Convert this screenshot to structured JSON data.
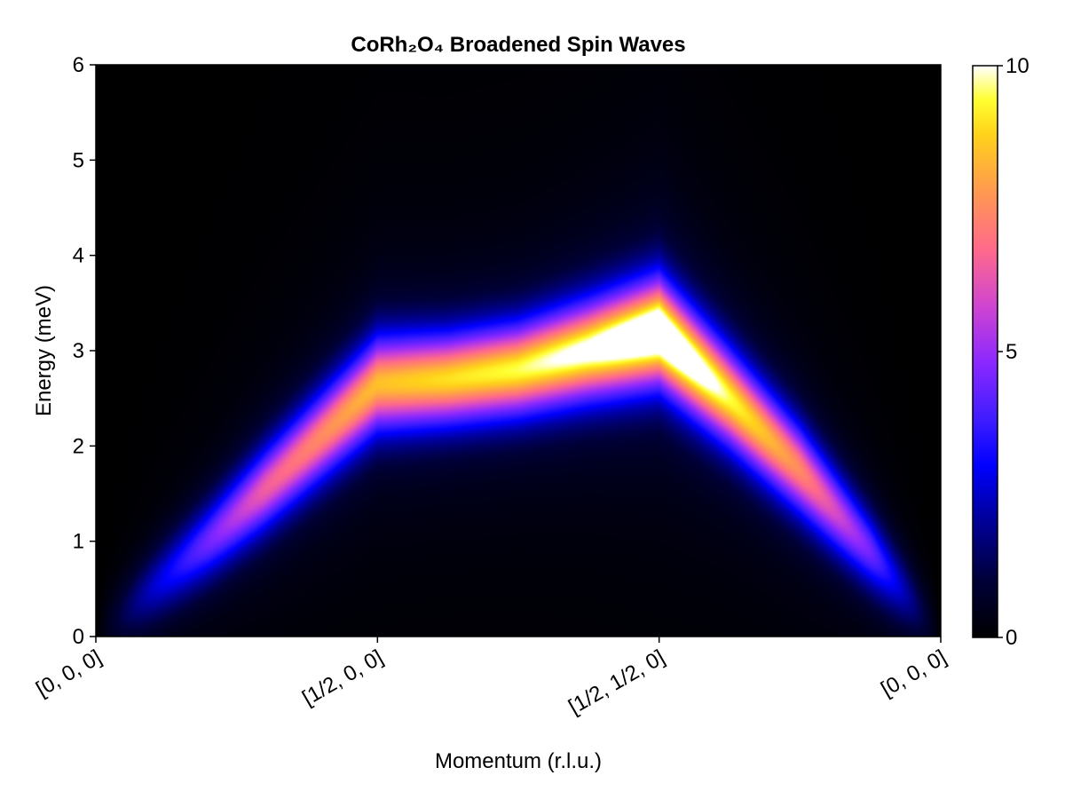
{
  "chart_data": {
    "type": "heatmap",
    "title": "CoRh₂O₄ Broadened Spin Waves",
    "xlabel": "Momentum (r.l.u.)",
    "ylabel": "Energy (meV)",
    "xlim": [
      0,
      3
    ],
    "ylim": [
      0,
      6
    ],
    "x_ticks": [
      {
        "value": 0,
        "label": "[0, 0, 0]"
      },
      {
        "value": 1,
        "label": "[1/2, 0, 0]"
      },
      {
        "value": 2,
        "label": "[1/2, 1/2, 0]"
      },
      {
        "value": 3,
        "label": "[0, 0, 0]"
      }
    ],
    "y_ticks": [
      {
        "value": 0,
        "label": "0"
      },
      {
        "value": 1,
        "label": "1"
      },
      {
        "value": 2,
        "label": "2"
      },
      {
        "value": 3,
        "label": "3"
      },
      {
        "value": 4,
        "label": "4"
      },
      {
        "value": 5,
        "label": "5"
      },
      {
        "value": 6,
        "label": "6"
      }
    ],
    "colorbar": {
      "colormap": "gnuplot2",
      "range": [
        0,
        10
      ],
      "ticks": [
        {
          "value": 0,
          "label": "0"
        },
        {
          "value": 5,
          "label": "5"
        },
        {
          "value": 10,
          "label": "10"
        }
      ],
      "placement": "right"
    },
    "dispersion": {
      "momentum": [
        0,
        0.2,
        0.4,
        0.6,
        0.8,
        1.0,
        1.25,
        1.5,
        1.75,
        2.0,
        2.25,
        2.5,
        2.75,
        3.0
      ],
      "energy": [
        0,
        0.5,
        1.0,
        1.55,
        2.1,
        2.65,
        2.7,
        2.8,
        3.0,
        3.2,
        2.5,
        1.75,
        0.9,
        0
      ],
      "peak_intensity": [
        0,
        2.5,
        4.5,
        6.5,
        7.5,
        8.5,
        9.0,
        9.5,
        10.5,
        12.5,
        9.5,
        7.5,
        4.5,
        0
      ],
      "width_meV": [
        0.3,
        0.32,
        0.34,
        0.36,
        0.38,
        0.4,
        0.38,
        0.38,
        0.4,
        0.42,
        0.4,
        0.38,
        0.34,
        0.3
      ]
    },
    "grid": false,
    "legend": "none"
  }
}
